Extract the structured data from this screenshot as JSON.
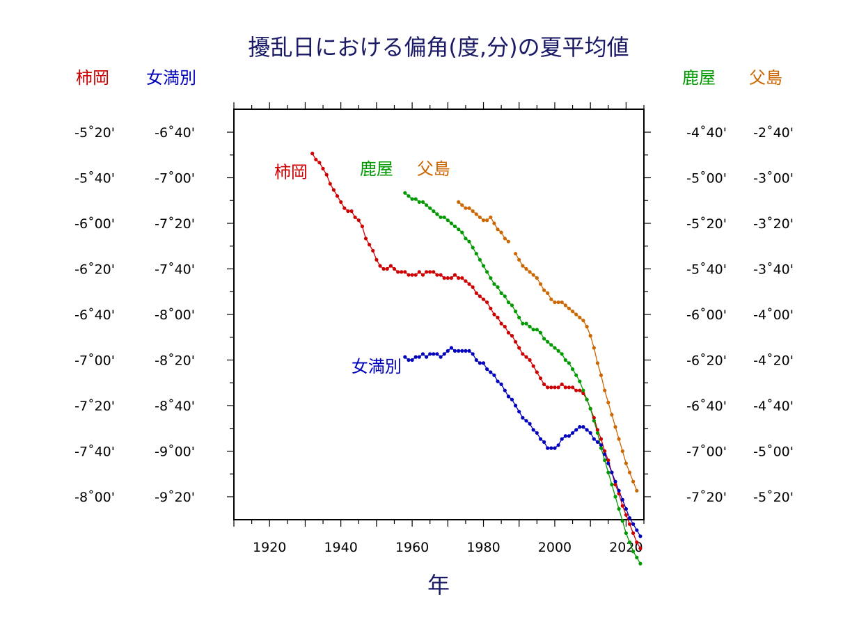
{
  "chart_data": {
    "type": "line",
    "title": "擾乱日における偏角(度,分)の夏平均値",
    "xlabel": "年",
    "xlim": [
      1910,
      2025
    ],
    "x_ticks": [
      "1920",
      "1940",
      "1960",
      "1980",
      "2000",
      "2020"
    ],
    "grid": false,
    "legend": "none",
    "axes": {
      "left": [
        {
          "header": "柿岡",
          "color": "#cc0000",
          "range_min": [
            -329,
            -480
          ],
          "ticks": [
            "-5˚20'",
            "-5˚40'",
            "-6˚00'",
            "-6˚20'",
            "-6˚40'",
            "-7˚00'",
            "-7˚20'",
            "-7˚40'",
            "-8˚00'"
          ]
        },
        {
          "header": "女満別",
          "color": "#0000bb",
          "range_min": [
            -409,
            -560
          ],
          "ticks": [
            "-6˚40'",
            "-7˚00'",
            "-7˚20'",
            "-7˚40'",
            "-8˚00'",
            "-8˚20'",
            "-8˚40'",
            "-9˚00'",
            "-9˚20'"
          ]
        }
      ],
      "right": [
        {
          "header": "鹿屋",
          "color": "#009900",
          "range_min": [
            -269,
            -420
          ],
          "ticks": [
            "-4˚40'",
            "-5˚00'",
            "-5˚20'",
            "-5˚40'",
            "-6˚00'",
            "-6˚20'",
            "-6˚40'",
            "-7˚00'",
            "-7˚20'"
          ]
        },
        {
          "header": "父島",
          "color": "#cc6600",
          "range_min": [
            -149,
            -300
          ],
          "ticks": [
            "-2˚40'",
            "-3˚00'",
            "-3˚20'",
            "-3˚40'",
            "-4˚00'",
            "-4˚20'",
            "-4˚40'",
            "-5˚00'",
            "-5˚20'"
          ]
        }
      ]
    },
    "series": [
      {
        "name": "柿岡",
        "color": "#cc0000",
        "axis": "left0",
        "label_year": 1926,
        "label_value_min": -355,
        "points": [
          [
            1932,
            -347
          ],
          [
            1933,
            -349
          ],
          [
            1934,
            -350
          ],
          [
            1935,
            -352
          ],
          [
            1936,
            -354
          ],
          [
            1937,
            -357
          ],
          [
            1938,
            -359
          ],
          [
            1939,
            -361
          ],
          [
            1940,
            -363
          ],
          [
            1941,
            -365
          ],
          [
            1942,
            -366
          ],
          [
            1943,
            -366
          ],
          [
            1944,
            -368
          ],
          [
            1945,
            -369
          ],
          [
            1946,
            -371
          ],
          [
            1947,
            -375
          ],
          [
            1948,
            -377
          ],
          [
            1949,
            -379
          ],
          [
            1950,
            -382
          ],
          [
            1951,
            -384
          ],
          [
            1952,
            -385
          ],
          [
            1953,
            -385
          ],
          [
            1954,
            -384
          ],
          [
            1955,
            -385
          ],
          [
            1956,
            -386
          ],
          [
            1957,
            -386
          ],
          [
            1958,
            -386
          ],
          [
            1959,
            -387
          ],
          [
            1960,
            -387
          ],
          [
            1961,
            -387
          ],
          [
            1962,
            -386
          ],
          [
            1963,
            -387
          ],
          [
            1964,
            -386
          ],
          [
            1965,
            -386
          ],
          [
            1966,
            -386
          ],
          [
            1967,
            -387
          ],
          [
            1968,
            -387
          ],
          [
            1969,
            -388
          ],
          [
            1970,
            -388
          ],
          [
            1971,
            -388
          ],
          [
            1972,
            -387
          ],
          [
            1973,
            -388
          ],
          [
            1974,
            -388
          ],
          [
            1975,
            -389
          ],
          [
            1976,
            -390
          ],
          [
            1977,
            -391
          ],
          [
            1978,
            -393
          ],
          [
            1979,
            -394
          ],
          [
            1980,
            -395
          ],
          [
            1981,
            -396
          ],
          [
            1982,
            -398
          ],
          [
            1983,
            -400
          ],
          [
            1984,
            -401
          ],
          [
            1985,
            -403
          ],
          [
            1986,
            -404
          ],
          [
            1987,
            -406
          ],
          [
            1988,
            -407
          ],
          [
            1989,
            -409
          ],
          [
            1990,
            -411
          ],
          [
            1991,
            -413
          ],
          [
            1992,
            -414
          ],
          [
            1993,
            -415
          ],
          [
            1994,
            -417
          ],
          [
            1995,
            -419
          ],
          [
            1996,
            -421
          ],
          [
            1997,
            -423
          ],
          [
            1998,
            -424
          ],
          [
            1999,
            -424
          ],
          [
            2000,
            -424
          ],
          [
            2001,
            -424
          ],
          [
            2002,
            -423
          ],
          [
            2003,
            -424
          ],
          [
            2004,
            -424
          ],
          [
            2005,
            -424
          ],
          [
            2006,
            -425
          ],
          [
            2007,
            -425
          ],
          [
            2008,
            -426
          ],
          [
            2009,
            -428
          ],
          [
            2010,
            -431
          ],
          [
            2011,
            -434
          ],
          [
            2012,
            -438
          ],
          [
            2013,
            -441
          ],
          [
            2014,
            -445
          ],
          [
            2015,
            -448
          ],
          [
            2016,
            -452
          ],
          [
            2017,
            -456
          ],
          [
            2018,
            -459
          ],
          [
            2019,
            -463
          ],
          [
            2020,
            -466
          ],
          [
            2021,
            -469
          ],
          [
            2022,
            -472
          ],
          [
            2023,
            -475
          ],
          [
            2024,
            -477
          ]
        ]
      },
      {
        "name": "女満別",
        "color": "#0000bb",
        "axis": "left1",
        "label_year": 1950,
        "label_value_min": -499,
        "points": [
          [
            1958,
            -494
          ],
          [
            1959,
            -495
          ],
          [
            1960,
            -495
          ],
          [
            1961,
            -494
          ],
          [
            1962,
            -494
          ],
          [
            1963,
            -493
          ],
          [
            1964,
            -494
          ],
          [
            1965,
            -493
          ],
          [
            1966,
            -493
          ],
          [
            1967,
            -493
          ],
          [
            1968,
            -494
          ],
          [
            1969,
            -493
          ],
          [
            1970,
            -492
          ],
          [
            1971,
            -491
          ],
          [
            1972,
            -492
          ],
          [
            1973,
            -492
          ],
          [
            1974,
            -492
          ],
          [
            1975,
            -492
          ],
          [
            1976,
            -492
          ],
          [
            1977,
            -493
          ],
          [
            1978,
            -495
          ],
          [
            1979,
            -496
          ],
          [
            1980,
            -496
          ],
          [
            1981,
            -498
          ],
          [
            1982,
            -499
          ],
          [
            1983,
            -500
          ],
          [
            1984,
            -502
          ],
          [
            1985,
            -503
          ],
          [
            1986,
            -505
          ],
          [
            1987,
            -507
          ],
          [
            1988,
            -508
          ],
          [
            1989,
            -510
          ],
          [
            1990,
            -512
          ],
          [
            1991,
            -514
          ],
          [
            1992,
            -515
          ],
          [
            1993,
            -516
          ],
          [
            1994,
            -518
          ],
          [
            1995,
            -519
          ],
          [
            1996,
            -521
          ],
          [
            1997,
            -522
          ],
          [
            1998,
            -524
          ],
          [
            1999,
            -524
          ],
          [
            2000,
            -524
          ],
          [
            2001,
            -523
          ],
          [
            2002,
            -521
          ],
          [
            2003,
            -520
          ],
          [
            2004,
            -520
          ],
          [
            2005,
            -519
          ],
          [
            2006,
            -518
          ],
          [
            2007,
            -517
          ],
          [
            2008,
            -517
          ],
          [
            2009,
            -518
          ],
          [
            2010,
            -519
          ],
          [
            2011,
            -521
          ],
          [
            2012,
            -522
          ],
          [
            2013,
            -523
          ],
          [
            2014,
            -526
          ],
          [
            2015,
            -529
          ],
          [
            2016,
            -532
          ],
          [
            2017,
            -535
          ],
          [
            2018,
            -538
          ],
          [
            2019,
            -541
          ],
          [
            2020,
            -544
          ],
          [
            2021,
            -547
          ],
          [
            2022,
            -549
          ],
          [
            2023,
            -551
          ],
          [
            2024,
            -553
          ]
        ]
      },
      {
        "name": "鹿屋",
        "color": "#009900",
        "axis": "right0",
        "label_year": 1950,
        "label_value_min": -294,
        "points": [
          [
            1958,
            -300
          ],
          [
            1959,
            -301
          ],
          [
            1960,
            -302
          ],
          [
            1961,
            -302
          ],
          [
            1962,
            -303
          ],
          [
            1963,
            -303
          ],
          [
            1964,
            -304
          ],
          [
            1965,
            -305
          ],
          [
            1966,
            -306
          ],
          [
            1967,
            -307
          ],
          [
            1968,
            -308
          ],
          [
            1969,
            -308
          ],
          [
            1970,
            -309
          ],
          [
            1971,
            -310
          ],
          [
            1972,
            -311
          ],
          [
            1973,
            -312
          ],
          [
            1974,
            -313
          ],
          [
            1975,
            -315
          ],
          [
            1976,
            -316
          ],
          [
            1977,
            -318
          ],
          [
            1978,
            -320
          ],
          [
            1979,
            -322
          ],
          [
            1980,
            -324
          ],
          [
            1981,
            -326
          ],
          [
            1982,
            -328
          ],
          [
            1983,
            -330
          ],
          [
            1984,
            -331
          ],
          [
            1985,
            -333
          ],
          [
            1986,
            -334
          ],
          [
            1987,
            -336
          ],
          [
            1988,
            -337
          ],
          [
            1989,
            -339
          ],
          [
            1990,
            -341
          ],
          [
            1991,
            -343
          ],
          [
            1992,
            -343
          ],
          [
            1993,
            -344
          ],
          [
            1994,
            -345
          ],
          [
            1995,
            -345
          ],
          [
            1996,
            -346
          ],
          [
            1997,
            -348
          ],
          [
            1998,
            -349
          ],
          [
            1999,
            -350
          ],
          [
            2000,
            -351
          ],
          [
            2001,
            -352
          ],
          [
            2002,
            -353
          ],
          [
            2003,
            -355
          ],
          [
            2004,
            -356
          ],
          [
            2005,
            -358
          ],
          [
            2006,
            -360
          ],
          [
            2007,
            -362
          ],
          [
            2008,
            -365
          ],
          [
            2009,
            -368
          ],
          [
            2010,
            -371
          ],
          [
            2011,
            -375
          ],
          [
            2012,
            -379
          ],
          [
            2013,
            -384
          ],
          [
            2014,
            -388
          ],
          [
            2015,
            -392
          ],
          [
            2016,
            -396
          ],
          [
            2017,
            -400
          ],
          [
            2018,
            -404
          ],
          [
            2019,
            -408
          ],
          [
            2020,
            -412
          ],
          [
            2021,
            -415
          ],
          [
            2022,
            -418
          ],
          [
            2023,
            -420
          ],
          [
            2024,
            -422
          ]
        ]
      },
      {
        "name": "父島",
        "color": "#cc6600",
        "axis": "right1",
        "label_year": 1966,
        "label_value_min": -174,
        "points": [
          [
            1973,
            -183
          ],
          [
            1974,
            -184
          ],
          [
            1975,
            -185
          ],
          [
            1976,
            -185
          ],
          [
            1977,
            -186
          ],
          [
            1978,
            -187
          ],
          [
            1979,
            -188
          ],
          [
            1980,
            -189
          ],
          [
            1981,
            -189
          ],
          [
            1982,
            -188
          ],
          [
            1983,
            -190
          ],
          [
            1984,
            -192
          ],
          [
            1985,
            -193
          ],
          [
            1986,
            -195
          ],
          [
            1987,
            -196
          ],
          [
            1989,
            -200
          ],
          [
            1990,
            -202
          ],
          [
            1991,
            -204
          ],
          [
            1992,
            -205
          ],
          [
            1993,
            -206
          ],
          [
            1994,
            -207
          ],
          [
            1995,
            -208
          ],
          [
            1996,
            -210
          ],
          [
            1997,
            -212
          ],
          [
            1998,
            -213
          ],
          [
            1999,
            -215
          ],
          [
            2000,
            -216
          ],
          [
            2001,
            -216
          ],
          [
            2002,
            -216
          ],
          [
            2003,
            -217
          ],
          [
            2004,
            -218
          ],
          [
            2005,
            -219
          ],
          [
            2006,
            -220
          ],
          [
            2007,
            -221
          ],
          [
            2008,
            -222
          ],
          [
            2009,
            -224
          ],
          [
            2010,
            -227
          ],
          [
            2011,
            -231
          ],
          [
            2012,
            -236
          ],
          [
            2013,
            -240
          ],
          [
            2014,
            -245
          ],
          [
            2015,
            -249
          ],
          [
            2016,
            -253
          ],
          [
            2017,
            -257
          ],
          [
            2018,
            -261
          ],
          [
            2019,
            -265
          ],
          [
            2020,
            -269
          ],
          [
            2021,
            -272
          ],
          [
            2022,
            -275
          ],
          [
            2023,
            -278
          ]
        ]
      }
    ]
  }
}
